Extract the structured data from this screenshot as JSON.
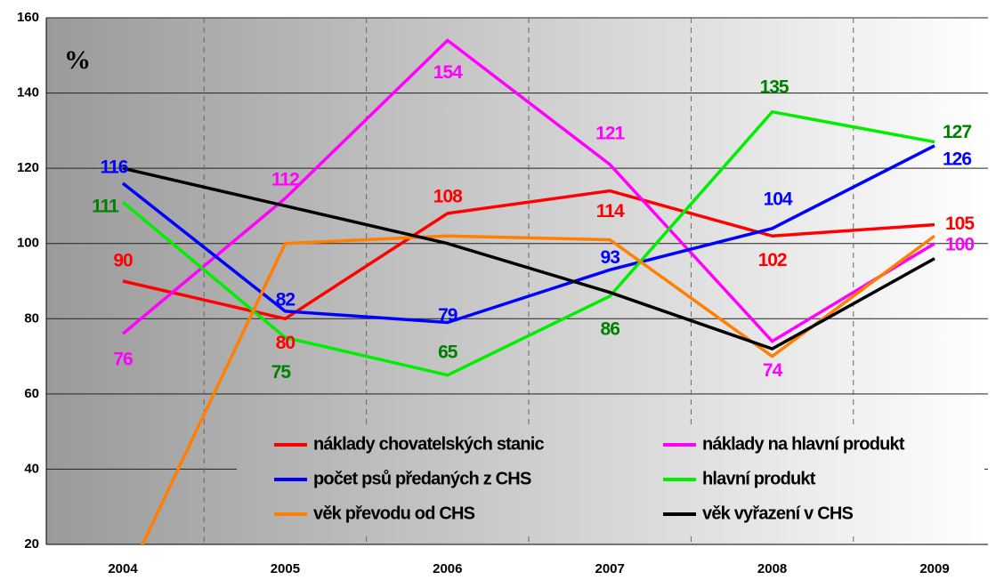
{
  "chart_data": {
    "type": "line",
    "annotation": "%",
    "categories": [
      "2004",
      "2005",
      "2006",
      "2007",
      "2008",
      "2009"
    ],
    "ylim": [
      20,
      160
    ],
    "yticks": [
      20,
      40,
      60,
      80,
      100,
      120,
      140,
      160
    ],
    "grid": true,
    "series": [
      {
        "name": "náklady chovatelských stanic",
        "color": "#ff0000",
        "data_labels": true,
        "values": [
          90,
          80,
          108,
          114,
          102,
          105
        ]
      },
      {
        "name": "náklady na hlavní produkt",
        "color": "#ff00ff",
        "data_labels": true,
        "values": [
          76,
          112,
          154,
          121,
          74,
          100
        ]
      },
      {
        "name": "počet psů předaných z CHS",
        "color": "#0000ff",
        "data_labels": true,
        "values": [
          116,
          82,
          79,
          93,
          104,
          126
        ]
      },
      {
        "name": "hlavní produkt",
        "color": "#00ee00",
        "label_color": "#008000",
        "data_labels": true,
        "values": [
          111,
          75,
          65,
          86,
          135,
          127
        ]
      },
      {
        "name": "věk převodu od CHS",
        "color": "#ff7f00",
        "data_labels": false,
        "values": [
          9,
          100,
          102,
          101,
          70,
          102
        ]
      },
      {
        "name": "věk vyřazení v CHS",
        "color": "#000000",
        "data_labels": false,
        "values": [
          120,
          110,
          100,
          87,
          72,
          96
        ]
      }
    ]
  }
}
